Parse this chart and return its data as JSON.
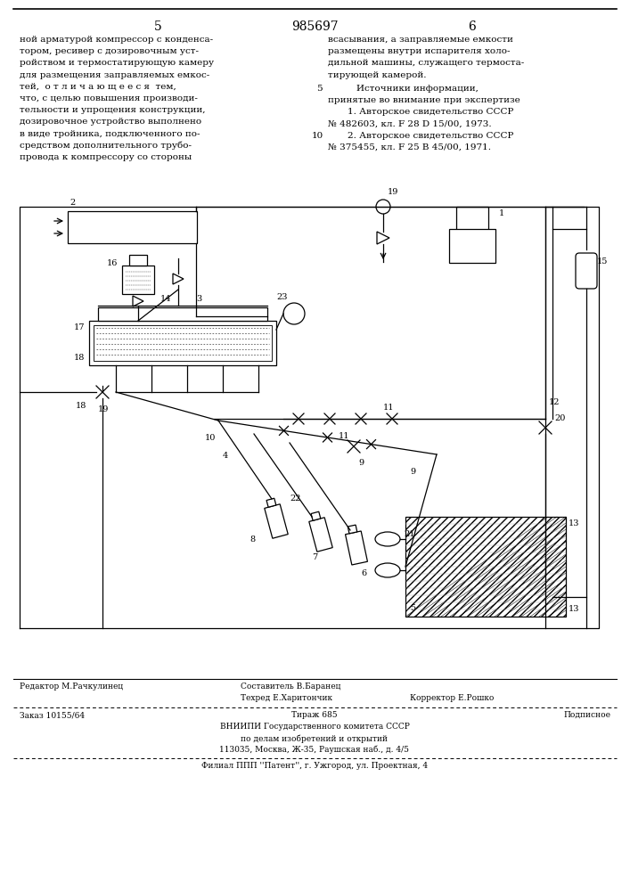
{
  "page_color": "#ffffff",
  "title_center": "985697",
  "page_num_left": "5",
  "page_num_right": "6",
  "left_lines": [
    "ной арматурой компрессор с конденса-",
    "тором, ресивер с дозировочным уст-",
    "ройством и термостатирующую камеру",
    "для размещения заправляемых емкос-",
    "тей,  о т л и ч а ю щ е е с я  тем,",
    "что, с целью повышения производи-",
    "тельности и упрощения конструкции,",
    "дозировочное устройство выполнено",
    "в виде тройника, подключенного по-",
    "средством дополнительного трубо-",
    "провода к компрессору со стороны"
  ],
  "right_lines_1": [
    "всасывания, а заправляемые емкости",
    "размещены внутри испарителя холо-",
    "дильной машины, служащего термоста-",
    "тирующей камерой."
  ],
  "marker5": "5",
  "sources_header1": "Источники информации,",
  "sources_header2": "принятые во внимание при экспертизе",
  "source1a": "1. Авторское свидетельство СССР",
  "source1b": "№ 482603, кл. F 28 D 15/00, 1973.",
  "marker10": "10",
  "source2a": "2. Авторское свидетельство СССР",
  "source2b": "№ 375455, кл. F 25 B 45/00, 1971.",
  "footer_editor": "Редактор М.Рачкулинец",
  "footer_author": "Составитель В.Баранец",
  "footer_tech": "Техред Е.Харитончик",
  "footer_corrector": "Корректор Е.Рошко",
  "footer_order": "Заказ 10155/64",
  "footer_tirazh": "Тираж 685",
  "footer_podpisnoe": "Подписное",
  "footer_vniiipi": "ВНИИПИ Государственного комитета СССР",
  "footer_po_delam": "по делам изобретений и открытий",
  "footer_address": "113035, Москва, Ж-35, Раушская наб., д. 4/5",
  "footer_filial": "Филиал ППП ''Патент'', г. Ужгород, ул. Проектная, 4"
}
